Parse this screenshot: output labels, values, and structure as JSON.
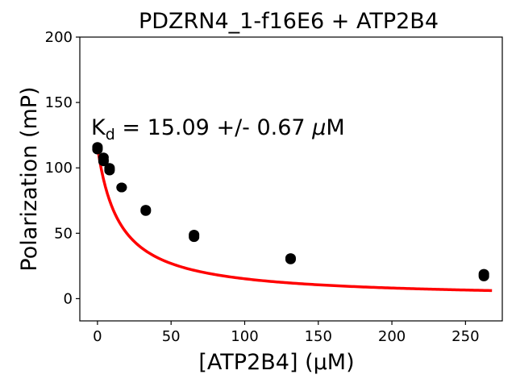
{
  "chart_data": {
    "type": "scatter",
    "title": "PDZRN4_1-f16E6 + ATP2B4",
    "xlabel": "[ATP2B4] (μM)",
    "ylabel": "Polarization (mP)",
    "xlim": [
      -12,
      275
    ],
    "ylim": [
      -17,
      200
    ],
    "x_ticks": [
      "0",
      "50",
      "100",
      "150",
      "200",
      "250"
    ],
    "y_ticks": [
      "0",
      "50",
      "100",
      "150",
      "200"
    ],
    "grid": false,
    "annotation": {
      "prefix": "K",
      "subscript": "d",
      "text": " = 15.09 +/- 0.67 ",
      "unit_symbol": "μ",
      "unit": "M"
    },
    "points": [
      {
        "x": 0,
        "y": 116
      },
      {
        "x": 0,
        "y": 115
      },
      {
        "x": 0,
        "y": 114
      },
      {
        "x": 4.1,
        "y": 108
      },
      {
        "x": 4.1,
        "y": 106
      },
      {
        "x": 4.1,
        "y": 105
      },
      {
        "x": 8.2,
        "y": 100
      },
      {
        "x": 8.2,
        "y": 99
      },
      {
        "x": 8.2,
        "y": 98
      },
      {
        "x": 16.4,
        "y": 85
      },
      {
        "x": 16.4,
        "y": 85
      },
      {
        "x": 32.8,
        "y": 68
      },
      {
        "x": 32.8,
        "y": 67
      },
      {
        "x": 65.6,
        "y": 49
      },
      {
        "x": 65.6,
        "y": 48
      },
      {
        "x": 65.6,
        "y": 47
      },
      {
        "x": 131.2,
        "y": 31
      },
      {
        "x": 131.2,
        "y": 30
      },
      {
        "x": 262.5,
        "y": 19
      },
      {
        "x": 262.5,
        "y": 18
      },
      {
        "x": 262.5,
        "y": 17
      }
    ],
    "fit": {
      "model": "hyperbolic_decay",
      "y_free": 116,
      "y_bound": 0,
      "kd": 15.09,
      "x_range": [
        0,
        268
      ],
      "color": "#ff0000"
    },
    "point_color": "#000000"
  }
}
